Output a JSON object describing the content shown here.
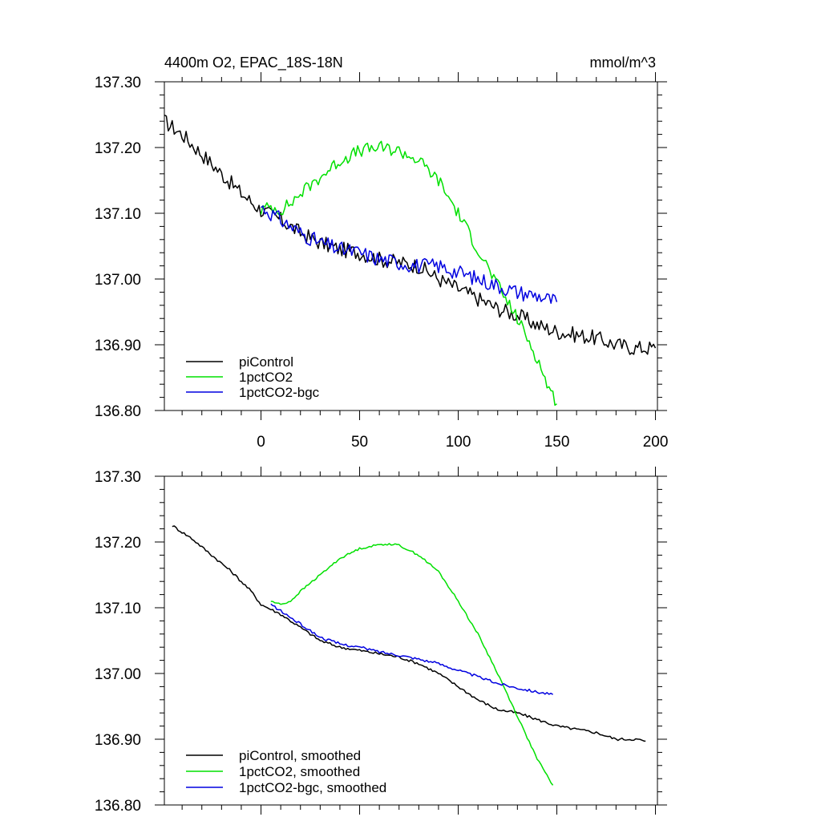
{
  "chart_data": [
    {
      "type": "line",
      "title": "4400m O2, EPAC_18S-18N",
      "units": "mmol/m^3",
      "xlabel": "",
      "ylabel": "",
      "xlim": [
        -49,
        201
      ],
      "ylim": [
        136.8,
        137.3
      ],
      "xticks": [
        0,
        50,
        100,
        150,
        200
      ],
      "yticks": [
        137.3,
        137.2,
        137.1,
        137.0,
        136.9,
        136.8
      ],
      "ytick_labels": [
        "137.30",
        "137.20",
        "137.10",
        "137.00",
        "136.90",
        "136.80"
      ],
      "legend_position": "bottom-left",
      "series": [
        {
          "name": "piControl",
          "color": "#000000",
          "noise": 0.012,
          "x": [
            -49,
            -40,
            -30,
            -20,
            -10,
            0,
            10,
            20,
            30,
            40,
            50,
            60,
            70,
            80,
            90,
            100,
            110,
            120,
            130,
            140,
            150,
            160,
            170,
            180,
            190,
            200
          ],
          "y": [
            137.24,
            137.22,
            137.19,
            137.16,
            137.13,
            137.105,
            137.09,
            137.07,
            137.055,
            137.045,
            137.04,
            137.03,
            137.025,
            137.02,
            137.0,
            136.985,
            136.97,
            136.955,
            136.945,
            136.93,
            136.92,
            136.915,
            136.91,
            136.9,
            136.895,
            136.895
          ]
        },
        {
          "name": "1pctCO2",
          "color": "#00e000",
          "noise": 0.01,
          "x": [
            0,
            5,
            10,
            15,
            20,
            30,
            40,
            50,
            60,
            70,
            80,
            90,
            100,
            110,
            120,
            130,
            140,
            145,
            150
          ],
          "y": [
            137.105,
            137.11,
            137.105,
            137.115,
            137.13,
            137.155,
            137.18,
            137.195,
            137.2,
            137.195,
            137.18,
            137.15,
            137.1,
            137.045,
            136.99,
            136.94,
            136.88,
            136.84,
            136.81
          ]
        },
        {
          "name": "1pctCO2-bgc",
          "color": "#0000e0",
          "noise": 0.012,
          "x": [
            0,
            10,
            20,
            30,
            40,
            50,
            60,
            70,
            80,
            90,
            100,
            110,
            120,
            130,
            140,
            150
          ],
          "y": [
            137.11,
            137.09,
            137.07,
            137.055,
            137.045,
            137.04,
            137.03,
            137.025,
            137.02,
            137.02,
            137.01,
            137.0,
            136.99,
            136.98,
            136.975,
            136.965
          ]
        }
      ]
    },
    {
      "type": "line",
      "title": "",
      "xlabel": "",
      "ylabel": "",
      "xlim": [
        -49,
        201
      ],
      "ylim": [
        136.8,
        137.3
      ],
      "xticks": [
        0,
        50,
        100,
        150,
        200
      ],
      "yticks": [
        137.3,
        137.2,
        137.1,
        137.0,
        136.9,
        136.8
      ],
      "ytick_labels": [
        "137.30",
        "137.20",
        "137.10",
        "137.00",
        "136.90",
        "136.80"
      ],
      "legend_position": "bottom-left",
      "series": [
        {
          "name": "piControl, smoothed",
          "color": "#000000",
          "noise": 0.002,
          "x": [
            -45,
            -35,
            -25,
            -15,
            -5,
            0,
            10,
            20,
            30,
            40,
            50,
            60,
            70,
            80,
            90,
            100,
            110,
            120,
            130,
            140,
            150,
            160,
            170,
            180,
            190,
            195
          ],
          "y": [
            137.225,
            137.205,
            137.18,
            137.155,
            137.125,
            137.105,
            137.09,
            137.07,
            137.05,
            137.04,
            137.035,
            137.03,
            137.025,
            137.015,
            137.0,
            136.98,
            136.96,
            136.945,
            136.94,
            136.93,
            136.92,
            136.915,
            136.91,
            136.9,
            136.9,
            136.897
          ]
        },
        {
          "name": "1pctCO2, smoothed",
          "color": "#00e000",
          "noise": 0.0015,
          "x": [
            5,
            10,
            15,
            20,
            30,
            40,
            50,
            60,
            65,
            70,
            80,
            90,
            100,
            110,
            120,
            130,
            140,
            148
          ],
          "y": [
            137.11,
            137.105,
            137.11,
            137.125,
            137.15,
            137.175,
            137.19,
            137.196,
            137.197,
            137.195,
            137.18,
            137.155,
            137.11,
            137.06,
            137.0,
            136.935,
            136.87,
            136.83
          ]
        },
        {
          "name": "1pctCO2-bgc, smoothed",
          "color": "#0000e0",
          "noise": 0.002,
          "x": [
            5,
            10,
            20,
            30,
            40,
            50,
            60,
            70,
            80,
            90,
            100,
            110,
            120,
            130,
            140,
            148
          ],
          "y": [
            137.105,
            137.095,
            137.075,
            137.055,
            137.045,
            137.04,
            137.033,
            137.028,
            137.022,
            137.015,
            137.005,
            136.995,
            136.985,
            136.978,
            136.972,
            136.968
          ]
        }
      ]
    }
  ]
}
